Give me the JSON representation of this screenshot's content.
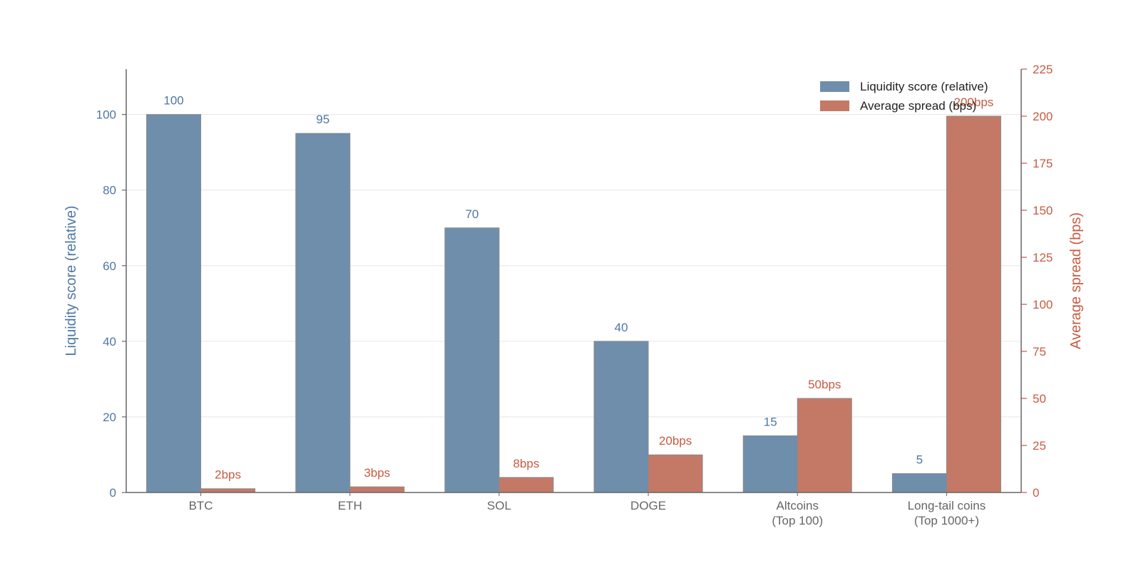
{
  "chart_data": {
    "type": "bar",
    "categories": [
      [
        "BTC"
      ],
      [
        "ETH"
      ],
      [
        "SOL"
      ],
      [
        "DOGE"
      ],
      [
        "Altcoins",
        "(Top 100)"
      ],
      [
        "Long-tail coins",
        "(Top 1000+)"
      ]
    ],
    "series": [
      {
        "name": "Liquidity score (relative)",
        "axis": "left",
        "values": [
          100,
          95,
          70,
          40,
          15,
          5
        ],
        "labels": [
          "100",
          "95",
          "70",
          "40",
          "15",
          "5"
        ],
        "color": "#6f8eac"
      },
      {
        "name": "Average spread (bps)",
        "axis": "right",
        "values": [
          2,
          3,
          8,
          20,
          50,
          200
        ],
        "labels": [
          "2bps",
          "3bps",
          "8bps",
          "20bps",
          "50bps",
          "200bps"
        ],
        "color": "#c47866"
      }
    ],
    "y_left": {
      "label": "Liquidity score (relative)",
      "range": [
        0,
        112
      ],
      "ticks": [
        0,
        20,
        40,
        60,
        80,
        100
      ],
      "color": "#4e77a3"
    },
    "y_right": {
      "label": "Average spread (bps)",
      "range": [
        0,
        225
      ],
      "ticks": [
        0,
        25,
        50,
        75,
        100,
        125,
        150,
        175,
        200,
        225
      ],
      "color": "#c85a40"
    },
    "x_tick_color": "#666666",
    "grid": "horizontal",
    "legend_position": "top-right"
  }
}
